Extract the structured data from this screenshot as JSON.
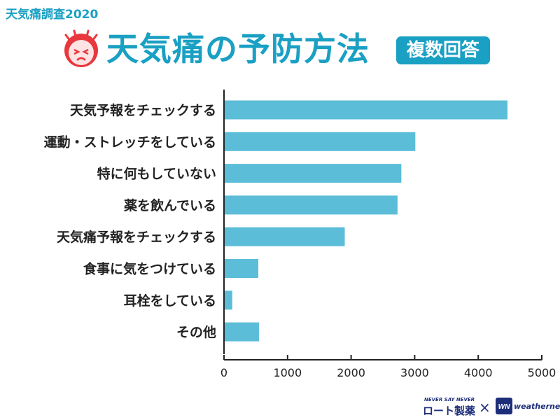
{
  "header": {
    "survey_label": "天気痛調査2020",
    "title": "天気痛の予防方法",
    "badge": "複数回答"
  },
  "chart_data": {
    "type": "bar",
    "orientation": "horizontal",
    "categories": [
      "天気予報をチェックする",
      "運動・ストレッチをしている",
      "特に何もしていない",
      "薬を飲んでいる",
      "天気痛予報をチェックする",
      "食事に気をつけている",
      "耳栓をしている",
      "その他"
    ],
    "values": [
      4460,
      3010,
      2790,
      2730,
      1900,
      540,
      130,
      550
    ],
    "xlim": [
      0,
      5000
    ],
    "xticks": [
      "0",
      "1000",
      "2000",
      "3000",
      "4000",
      "5000"
    ],
    "bar_color": "#5bbdd8",
    "grid": false
  },
  "footer": {
    "rohto_tagline": "NEVER SAY NEVER",
    "rohto_name": "ロート製薬",
    "cross": "×",
    "wn_mark": "WN",
    "weathernews": "weathernews"
  },
  "colors": {
    "accent": "#1aa0c3",
    "bar": "#5bbdd8",
    "face": "#e8383d",
    "brand_navy": "#1d2f7a"
  }
}
